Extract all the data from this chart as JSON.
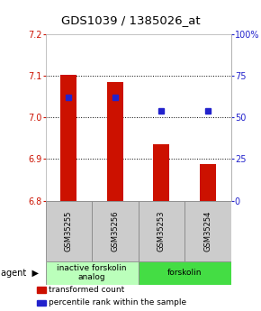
{
  "title": "GDS1039 / 1385026_at",
  "samples": [
    "GSM35255",
    "GSM35256",
    "GSM35253",
    "GSM35254"
  ],
  "bar_values": [
    7.103,
    7.085,
    6.935,
    6.887
  ],
  "bar_bottom": 6.8,
  "percentile_values": [
    62,
    62,
    54,
    54
  ],
  "ylim": [
    6.8,
    7.2
  ],
  "yticks_left": [
    6.8,
    6.9,
    7.0,
    7.1,
    7.2
  ],
  "yticks_right": [
    0,
    25,
    50,
    75,
    100
  ],
  "bar_color": "#CC1100",
  "percentile_color": "#2222CC",
  "agent_groups": [
    {
      "label": "inactive forskolin\nanalog",
      "span": [
        0,
        2
      ],
      "color": "#bbffbb"
    },
    {
      "label": "forskolin",
      "span": [
        2,
        4
      ],
      "color": "#44dd44"
    }
  ],
  "legend_items": [
    {
      "color": "#CC1100",
      "label": "transformed count"
    },
    {
      "color": "#2222CC",
      "label": "percentile rank within the sample"
    }
  ],
  "title_fontsize": 9.5,
  "tick_fontsize": 7,
  "sample_fontsize": 6,
  "agent_fontsize": 6.5,
  "legend_fontsize": 6.5,
  "bar_width": 0.35
}
